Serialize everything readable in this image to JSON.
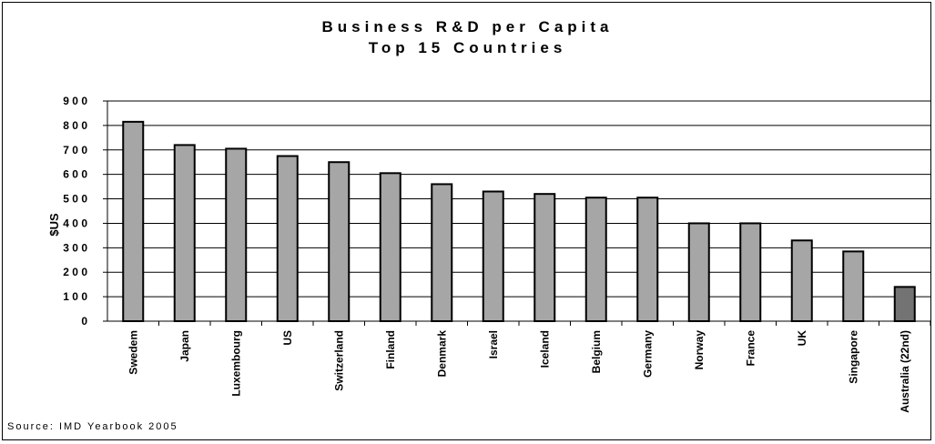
{
  "chart_data": {
    "type": "bar",
    "title": "Business R&D per Capita",
    "subtitle": "Top 15 Countries",
    "ylabel": "$US",
    "xlabel": "",
    "ylim": [
      0,
      900
    ],
    "yticks": [
      0,
      100,
      200,
      300,
      400,
      500,
      600,
      700,
      800,
      900
    ],
    "ytick_labels": [
      "0",
      "1 0 0",
      "2 0 0",
      "3 0 0",
      "4 0 0",
      "5 0 0",
      "6 0 0",
      "7 0 0",
      "8 0 0",
      "9 0 0"
    ],
    "grid": true,
    "categories": [
      "Swedem",
      "Japan",
      "Luxembourg",
      "US",
      "Switzerland",
      "Finland",
      "Denmark",
      "Israel",
      "Iceland",
      "Belgium",
      "Germany",
      "Norway",
      "France",
      "UK",
      "Singapore",
      "Australia (22nd)"
    ],
    "values": [
      815,
      720,
      705,
      675,
      650,
      605,
      560,
      530,
      520,
      505,
      505,
      400,
      400,
      330,
      285,
      140
    ],
    "bar_colors": [
      "#a6a6a6",
      "#a6a6a6",
      "#a6a6a6",
      "#a6a6a6",
      "#a6a6a6",
      "#a6a6a6",
      "#a6a6a6",
      "#a6a6a6",
      "#a6a6a6",
      "#a6a6a6",
      "#a6a6a6",
      "#a6a6a6",
      "#a6a6a6",
      "#a6a6a6",
      "#a6a6a6",
      "#737373"
    ]
  },
  "source": "Source: IMD Yearbook 2005"
}
